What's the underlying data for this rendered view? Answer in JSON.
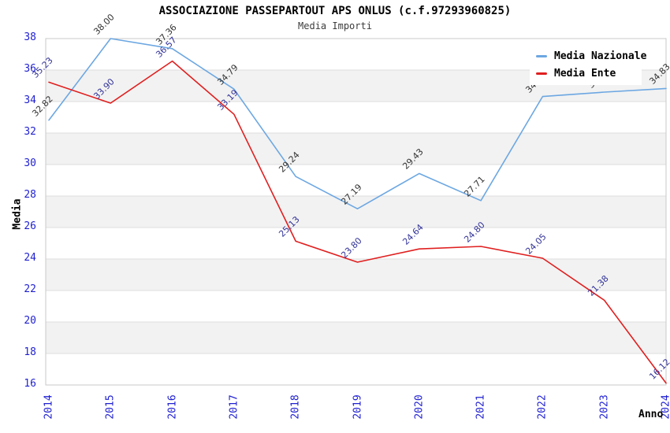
{
  "header": {
    "title": "ASSOCIAZIONE PASSEPARTOUT APS ONLUS (c.f.97293960825)",
    "subtitle": "Media Importi"
  },
  "legend": {
    "items": [
      {
        "label": "Media Nazionale",
        "color": "#6ca7e2"
      },
      {
        "label": "Media Ente",
        "color": "#e01f1f"
      }
    ]
  },
  "axes": {
    "y_title": "Media",
    "x_title": "Anno",
    "y_ticks": [
      "38",
      "36",
      "34",
      "32",
      "30",
      "28",
      "26",
      "24",
      "22",
      "20",
      "18",
      "16"
    ],
    "x_ticks": [
      "2014",
      "2015",
      "2016",
      "2017",
      "2018",
      "2019",
      "2020",
      "2021",
      "2022",
      "2023",
      "2024"
    ],
    "tick_color": "#1f1fd1"
  },
  "chart_data": {
    "type": "line",
    "title": "ASSOCIAZIONE PASSEPARTOUT APS ONLUS (c.f.97293960825)",
    "subtitle": "Media Importi",
    "xlabel": "Anno",
    "ylabel": "Media",
    "x": [
      "2014",
      "2015",
      "2016",
      "2017",
      "2018",
      "2019",
      "2020",
      "2021",
      "2022",
      "2023",
      "2024"
    ],
    "ylim": [
      16,
      38
    ],
    "y_tick_step": 2,
    "grid": "horizontal gridlines every 2 units with alternating white/grey bands",
    "legend_position": "top-right",
    "series": [
      {
        "name": "Media Nazionale",
        "color": "#6ca7e2",
        "label_color": "#333333",
        "values": [
          32.82,
          38.0,
          37.36,
          34.79,
          29.24,
          27.19,
          29.43,
          27.71,
          34.32,
          34.6,
          34.83
        ],
        "labels": [
          "32.82",
          "38.00",
          "37.36",
          "34.79",
          "29.24",
          "27.19",
          "29.43",
          "27.71",
          "34.32",
          "34.60",
          "34.83"
        ]
      },
      {
        "name": "Media Ente",
        "color": "#e01f1f",
        "label_color": "#333399",
        "values": [
          35.23,
          33.9,
          36.57,
          33.19,
          25.13,
          23.8,
          24.64,
          24.8,
          24.05,
          21.38,
          16.12
        ],
        "labels": [
          "35.23",
          "33.90",
          "36.57",
          "33.19",
          "25.13",
          "23.80",
          "24.64",
          "24.80",
          "24.05",
          "21.38",
          "16.12"
        ]
      }
    ]
  },
  "colors": {
    "background": "#ffffff",
    "band": "#f2f2f2",
    "gridline": "#dedede",
    "plot_border": "#c8c8c8"
  }
}
